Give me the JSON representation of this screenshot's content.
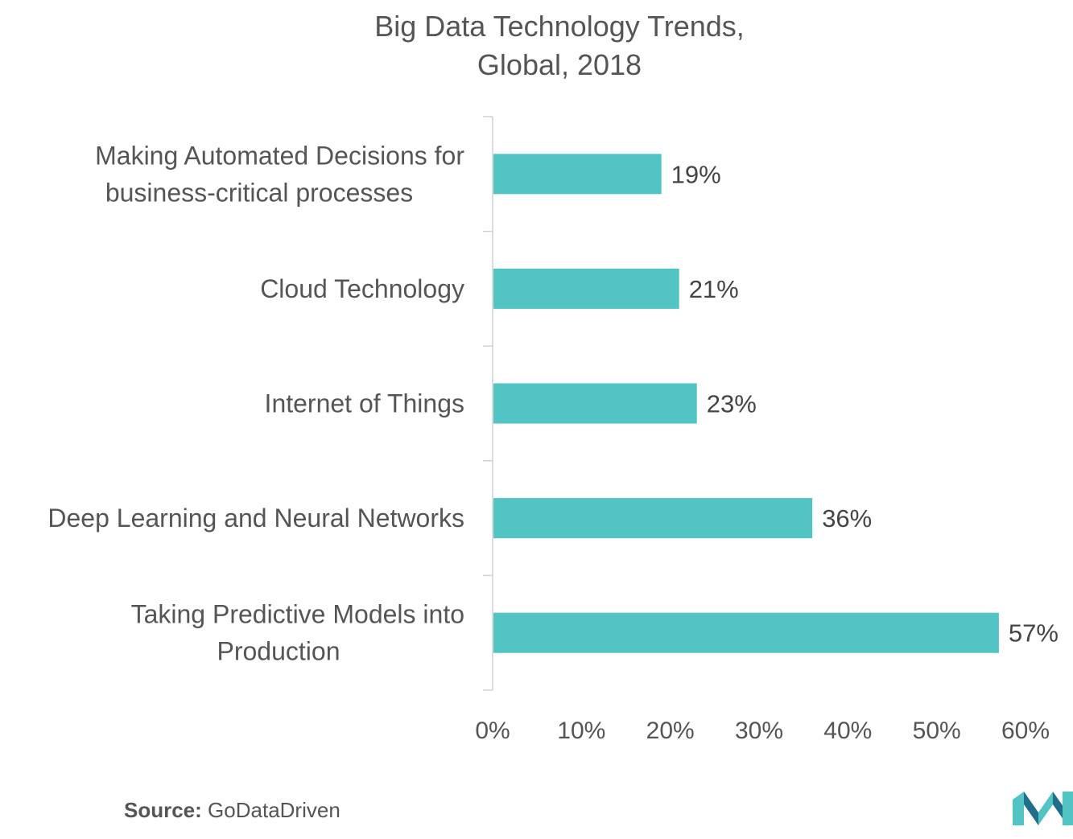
{
  "chart_data": {
    "type": "bar",
    "orientation": "horizontal",
    "title_lines": [
      "Big Data Technology Trends,",
      "Global, 2018"
    ],
    "categories": [
      [
        "Making Automated Decisions for",
        "business-critical processes"
      ],
      [
        "Cloud Technology"
      ],
      [
        "Internet of Things"
      ],
      [
        "Deep Learning and Neural Networks"
      ],
      [
        "Taking Predictive Models into",
        "Production"
      ]
    ],
    "values": [
      19,
      21,
      23,
      36,
      57
    ],
    "data_labels": [
      "19%",
      "21%",
      "23%",
      "36%",
      "57%"
    ],
    "xticks": [
      0,
      10,
      20,
      30,
      40,
      50,
      60
    ],
    "xtick_labels": [
      "0%",
      "10%",
      "20%",
      "30%",
      "40%",
      "50%",
      "60%"
    ],
    "xlim": [
      0,
      60
    ],
    "grid": false,
    "legend": "none"
  },
  "colors": {
    "bar": "#52c4c4",
    "axis": "#d0d0d0",
    "logo_dark": "#1f6f8b",
    "logo_light": "#52c4c4"
  },
  "source": {
    "label": "Source:",
    "text": "GoDataDriven"
  },
  "logo_icon": "mordor-intelligence-logo-icon"
}
